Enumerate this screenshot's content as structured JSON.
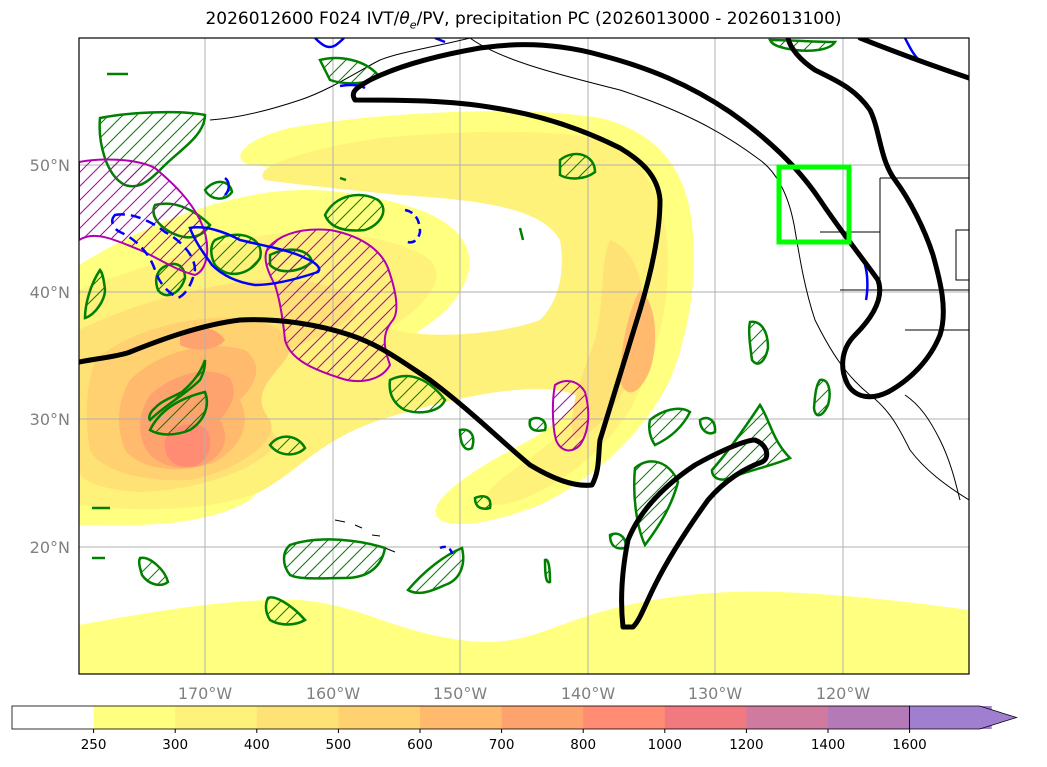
{
  "title": {
    "prefix": "2026012600 F024 IVT/",
    "theta": "θ",
    "theta_sub": "e",
    "suffix": "/PV, precipitation PC (2026013000 - 2026013100)"
  },
  "map": {
    "lat_labels": [
      "50°N",
      "40°N",
      "30°N",
      "20°N"
    ],
    "lon_labels": [
      "170°W",
      "160°W",
      "150°W",
      "140°W",
      "130°W",
      "120°W"
    ],
    "colors": {
      "ivt_contour": "#000000",
      "precip_pc_positive": "#008000",
      "pv_positive": "#b000b0",
      "pv_negative": "#0000ff",
      "target_box": "#00ff00",
      "coastline": "#000000",
      "gridline": "#b0b0b0",
      "tick_label": "#808080"
    }
  },
  "colorbar": {
    "levels": [
      "250",
      "300",
      "400",
      "500",
      "600",
      "700",
      "800",
      "1000",
      "1200",
      "1400",
      "1600"
    ],
    "colors": [
      "#ffffff",
      "#ffff80",
      "#fff27a",
      "#ffe275",
      "#ffd170",
      "#ffba6e",
      "#ffa36e",
      "#ff8c73",
      "#f07a80",
      "#d07aa0",
      "#b47ab8",
      "#a07ed0"
    ]
  }
}
